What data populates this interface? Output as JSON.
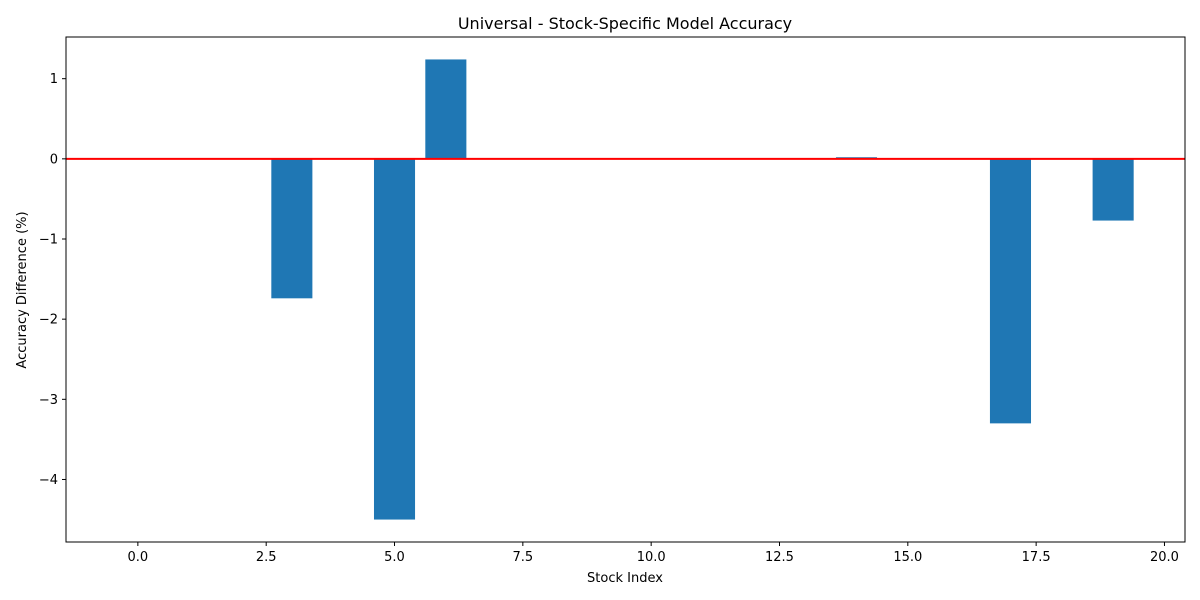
{
  "chart_data": {
    "type": "bar",
    "title": "Universal - Stock-Specific Model Accuracy",
    "xlabel": "Stock Index",
    "ylabel": "Accuracy Difference (%)",
    "x": [
      3,
      5,
      6,
      14,
      17,
      19
    ],
    "values": [
      -1.74,
      -4.5,
      1.24,
      0.02,
      -3.3,
      -0.77
    ],
    "bar_width": 0.8,
    "xlim": [
      -1.4,
      20.4
    ],
    "ylim": [
      -4.78,
      1.52
    ],
    "xticks": [
      0.0,
      2.5,
      5.0,
      7.5,
      10.0,
      12.5,
      15.0,
      17.5,
      20.0
    ],
    "xtick_labels": [
      "0.0",
      "2.5",
      "5.0",
      "7.5",
      "10.0",
      "12.5",
      "15.0",
      "17.5",
      "20.0"
    ],
    "yticks": [
      -4,
      -3,
      -2,
      -1,
      0,
      1
    ],
    "ytick_labels": [
      "−4",
      "−3",
      "−2",
      "−1",
      "0",
      "1"
    ],
    "reference_line": 0,
    "grid": false,
    "colors": {
      "bar": "#1f77b4",
      "reference_line": "#ff0000",
      "axes": "#000000"
    }
  }
}
